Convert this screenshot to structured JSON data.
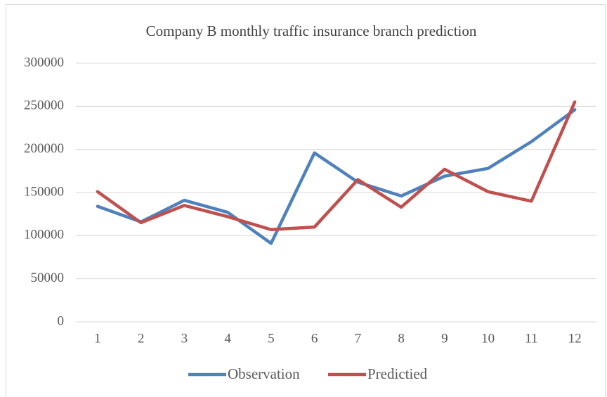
{
  "chart_data": {
    "type": "line",
    "title": "Company B monthly traffic  insurance branch prediction",
    "categories": [
      "1",
      "2",
      "3",
      "4",
      "5",
      "6",
      "7",
      "8",
      "9",
      "10",
      "11",
      "12"
    ],
    "series": [
      {
        "name": "Observation",
        "color": "#4f81bd",
        "values": [
          134000,
          116000,
          141000,
          127000,
          91000,
          196000,
          162000,
          146000,
          169000,
          178000,
          209000,
          246000
        ]
      },
      {
        "name": "Predictied",
        "color": "#c0504d",
        "values": [
          151000,
          115000,
          135000,
          122000,
          107000,
          110000,
          165000,
          133000,
          177000,
          151000,
          140000,
          255000
        ]
      }
    ],
    "ylim": [
      0,
      300000
    ],
    "yticks": [
      0,
      50000,
      100000,
      150000,
      200000,
      250000,
      300000
    ],
    "grid": true,
    "legend": "bottom"
  }
}
